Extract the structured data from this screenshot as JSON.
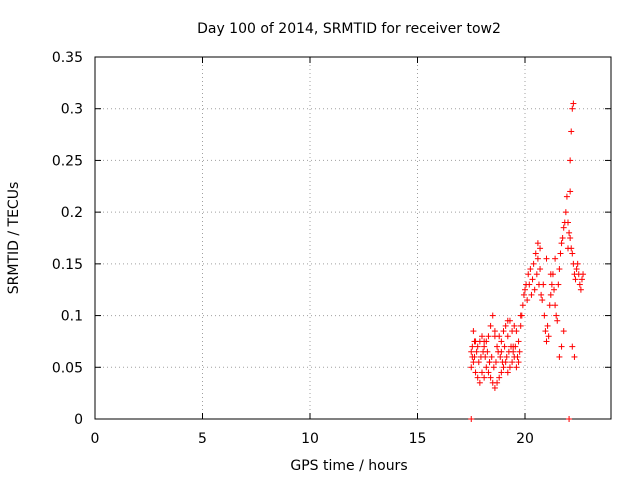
{
  "chart_data": {
    "type": "scatter",
    "title": "Day 100 of 2014, SRMTID for receiver tow2",
    "xlabel": "GPS time / hours",
    "ylabel": "SRMTID / TECUs",
    "xlim": [
      0,
      24
    ],
    "ylim": [
      0,
      0.35
    ],
    "xticks": [
      0,
      5,
      10,
      15,
      20
    ],
    "xtick_labels": [
      "0",
      "5",
      "10",
      "15",
      "20"
    ],
    "yticks": [
      0,
      0.05,
      0.1,
      0.15,
      0.2,
      0.25,
      0.3,
      0.35
    ],
    "ytick_labels": [
      "0",
      "0.05",
      "0.1",
      "0.15",
      "0.2",
      "0.25",
      "0.3",
      "0.35"
    ],
    "grid": true,
    "marker": "plus",
    "series": [
      {
        "name": "SRMTID",
        "color": "#ff0000",
        "x": [
          17.5,
          17.5,
          17.5,
          17.55,
          17.6,
          17.6,
          17.65,
          17.7,
          17.7,
          17.75,
          17.8,
          17.8,
          17.85,
          17.9,
          17.9,
          17.95,
          18.0,
          18.0,
          18.05,
          18.1,
          18.1,
          18.15,
          18.2,
          18.2,
          18.25,
          18.3,
          18.3,
          18.35,
          18.4,
          18.4,
          18.45,
          18.5,
          18.5,
          18.55,
          18.6,
          18.6,
          18.65,
          18.7,
          18.7,
          18.75,
          18.8,
          18.8,
          18.85,
          18.9,
          18.9,
          18.95,
          19.0,
          19.0,
          19.05,
          19.1,
          19.1,
          19.15,
          19.2,
          19.2,
          19.25,
          19.3,
          19.3,
          19.35,
          19.4,
          19.4,
          19.45,
          19.5,
          19.5,
          19.55,
          19.6,
          19.6,
          19.65,
          19.7,
          19.7,
          19.75,
          19.8,
          19.85,
          19.9,
          19.95,
          20.0,
          20.05,
          20.1,
          20.15,
          20.2,
          20.25,
          20.3,
          20.35,
          20.4,
          20.45,
          20.5,
          20.55,
          20.6,
          20.65,
          20.7,
          20.75,
          20.8,
          20.85,
          20.9,
          20.95,
          21.0,
          21.05,
          21.1,
          21.15,
          21.2,
          21.25,
          21.3,
          21.35,
          21.4,
          21.45,
          21.5,
          21.55,
          21.6,
          21.65,
          21.7,
          21.75,
          21.8,
          21.85,
          21.9,
          21.95,
          22.0,
          22.05,
          22.1,
          22.15,
          22.2,
          22.25,
          22.3,
          22.35,
          22.4,
          22.45,
          22.5,
          22.55,
          22.6,
          22.65,
          22.7,
          22.1,
          22.15,
          22.2,
          22.25,
          22.1,
          22.2,
          22.3,
          21.6,
          21.7,
          21.8,
          20.6,
          20.7,
          21.0,
          21.2,
          21.4,
          22.0,
          18.1,
          18.6,
          19.2,
          19.8,
          17.55,
          17.65,
          18.35,
          18.9,
          19.45,
          22.05
        ],
        "y": [
          0.0,
          0.065,
          0.05,
          0.07,
          0.085,
          0.055,
          0.06,
          0.075,
          0.045,
          0.065,
          0.07,
          0.04,
          0.055,
          0.075,
          0.035,
          0.06,
          0.08,
          0.045,
          0.065,
          0.07,
          0.04,
          0.06,
          0.075,
          0.05,
          0.065,
          0.08,
          0.045,
          0.055,
          0.09,
          0.04,
          0.06,
          0.1,
          0.035,
          0.05,
          0.085,
          0.03,
          0.055,
          0.07,
          0.035,
          0.065,
          0.08,
          0.04,
          0.06,
          0.075,
          0.045,
          0.055,
          0.085,
          0.05,
          0.07,
          0.09,
          0.055,
          0.06,
          0.08,
          0.045,
          0.065,
          0.095,
          0.05,
          0.07,
          0.085,
          0.055,
          0.065,
          0.09,
          0.06,
          0.07,
          0.085,
          0.05,
          0.06,
          0.075,
          0.055,
          0.065,
          0.09,
          0.1,
          0.11,
          0.12,
          0.125,
          0.13,
          0.115,
          0.14,
          0.13,
          0.145,
          0.12,
          0.135,
          0.15,
          0.125,
          0.16,
          0.14,
          0.155,
          0.13,
          0.145,
          0.12,
          0.115,
          0.13,
          0.1,
          0.085,
          0.075,
          0.09,
          0.08,
          0.11,
          0.12,
          0.13,
          0.14,
          0.125,
          0.11,
          0.1,
          0.095,
          0.13,
          0.145,
          0.16,
          0.17,
          0.175,
          0.185,
          0.19,
          0.2,
          0.215,
          0.19,
          0.18,
          0.175,
          0.165,
          0.16,
          0.15,
          0.14,
          0.135,
          0.145,
          0.15,
          0.14,
          0.13,
          0.125,
          0.135,
          0.14,
          0.25,
          0.278,
          0.3,
          0.305,
          0.22,
          0.07,
          0.06,
          0.06,
          0.07,
          0.085,
          0.17,
          0.165,
          0.155,
          0.14,
          0.155,
          0.165,
          0.075,
          0.08,
          0.095,
          0.1,
          0.06,
          0.075,
          0.055,
          0.065,
          0.07,
          0.0
        ]
      }
    ]
  }
}
